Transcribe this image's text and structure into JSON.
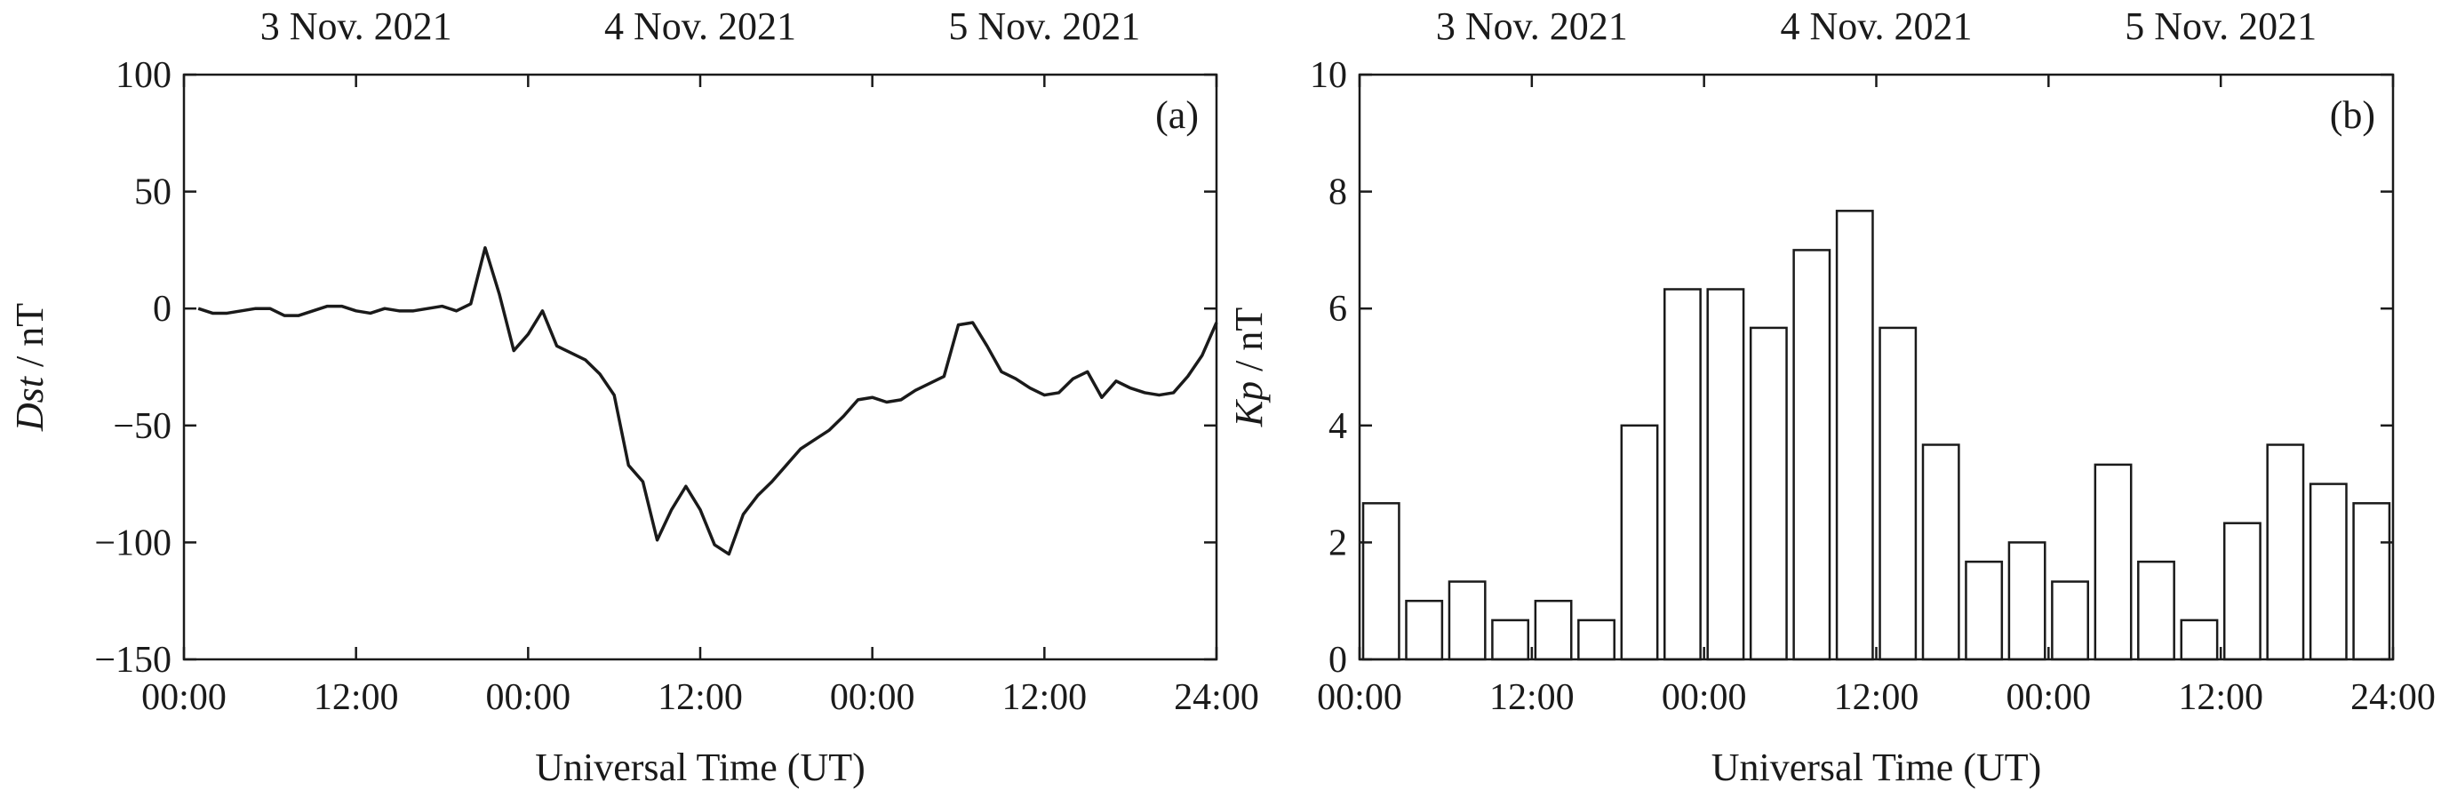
{
  "chart_data": [
    {
      "type": "line",
      "panel_label": "(a)",
      "ylabel_italic": "Dst",
      "ylabel_unit": " / nT",
      "xlabel": "Universal Time (UT)",
      "xlim": [
        0,
        72
      ],
      "ylim": [
        -150,
        100
      ],
      "yticks": [
        100,
        50,
        0,
        -50,
        -100,
        -150
      ],
      "ytick_labels": [
        "100",
        "50",
        "0",
        "−50",
        "−100",
        "−150"
      ],
      "xticks": [
        0,
        12,
        24,
        36,
        48,
        60,
        72
      ],
      "xtick_labels": [
        "00:00",
        "12:00",
        "00:00",
        "12:00",
        "00:00",
        "12:00",
        "24:00"
      ],
      "date_labels": [
        "3 Nov. 2021",
        "4 Nov. 2021",
        "5 Nov. 2021"
      ],
      "grid": false,
      "series": [
        {
          "x": [
            1,
            2,
            3,
            4,
            5,
            6,
            7,
            8,
            9,
            10,
            11,
            12,
            13,
            14,
            15,
            16,
            17,
            18,
            19,
            20,
            21,
            22,
            23,
            24,
            25,
            26,
            27,
            28,
            29,
            30,
            31,
            32,
            33,
            34,
            35,
            36,
            37,
            38,
            39,
            40,
            41,
            42,
            43,
            44,
            45,
            46,
            47,
            48,
            49,
            50,
            51,
            52,
            53,
            54,
            55,
            56,
            57,
            58,
            59,
            60,
            61,
            62,
            63,
            64,
            65,
            66,
            67,
            68,
            69,
            70,
            71,
            72
          ],
          "values": [
            0,
            -2,
            -2,
            -1,
            0,
            0,
            -3,
            -3,
            -1,
            1,
            1,
            -1,
            -2,
            0,
            -1,
            -1,
            0,
            1,
            -1,
            2,
            26,
            6,
            -18,
            -11,
            -1,
            -16,
            -19,
            -22,
            -28,
            -37,
            -67,
            -74,
            -99,
            -86,
            -76,
            -86,
            -101,
            -105,
            -88,
            -80,
            -74,
            -67,
            -60,
            -56,
            -52,
            -46,
            -39,
            -38,
            -40,
            -39,
            -35,
            -32,
            -29,
            -7,
            -6,
            -16,
            -27,
            -30,
            -34,
            -37,
            -36,
            -30,
            -27,
            -38,
            -31,
            -34,
            -36,
            -37,
            -36,
            -29,
            -20,
            -6
          ]
        }
      ]
    },
    {
      "type": "bar",
      "panel_label": "(b)",
      "ylabel_italic": "Kp",
      "ylabel_unit": " / nT",
      "xlabel": "Universal Time (UT)",
      "xlim": [
        0,
        72
      ],
      "ylim": [
        0,
        10
      ],
      "yticks": [
        10,
        8,
        6,
        4,
        2,
        0
      ],
      "ytick_labels": [
        "10",
        "8",
        "6",
        "4",
        "2",
        "0"
      ],
      "xticks": [
        0,
        12,
        24,
        36,
        48,
        60,
        72
      ],
      "xtick_labels": [
        "00:00",
        "12:00",
        "00:00",
        "12:00",
        "00:00",
        "12:00",
        "24:00"
      ],
      "date_labels": [
        "3 Nov. 2021",
        "4 Nov. 2021",
        "5 Nov. 2021"
      ],
      "grid": false,
      "bar_width_hours": 2.5,
      "x": [
        1.5,
        4.5,
        7.5,
        10.5,
        13.5,
        16.5,
        19.5,
        22.5,
        25.5,
        28.5,
        31.5,
        34.5,
        37.5,
        40.5,
        43.5,
        46.5,
        49.5,
        52.5,
        55.5,
        58.5,
        61.5,
        64.5,
        67.5,
        70.5
      ],
      "values": [
        2.67,
        1,
        1.33,
        0.67,
        1,
        0.67,
        4,
        6.33,
        6.33,
        5.67,
        7,
        7.67,
        5.67,
        3.67,
        1.67,
        2,
        1.33,
        3.33,
        1.67,
        0.67,
        2.33,
        3.67,
        3,
        2.67
      ]
    }
  ]
}
